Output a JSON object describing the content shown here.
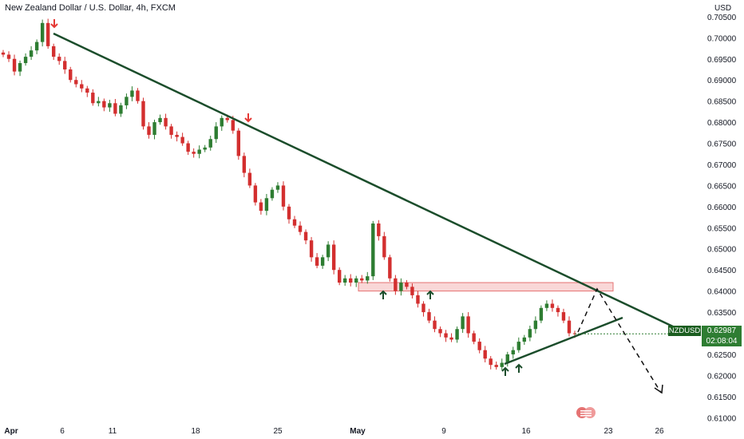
{
  "header": {
    "title": "New Zealand Dollar / U.S. Dollar, 4h, FXCM",
    "currency": "USD"
  },
  "price_label": {
    "symbol": "NZDUSD",
    "price": "0.62987",
    "countdown": "02:08:04"
  },
  "colors": {
    "up": "#26a69a",
    "down": "#ef5350",
    "up_candle": "#2e7d32",
    "down_candle": "#d32f2f",
    "trendline": "#1b4d2b",
    "zone_fill": "#f7c6c6",
    "zone_border": "#e57373",
    "arrow_down": "#e53935",
    "arrow_up": "#1b4d2b",
    "price_tag": "#2e7d32"
  },
  "chart_data": {
    "type": "candlestick",
    "yticks": [
      "0.70500",
      "0.70000",
      "0.69500",
      "0.69000",
      "0.68500",
      "0.68000",
      "0.67500",
      "0.67000",
      "0.66500",
      "0.66000",
      "0.65500",
      "0.65000",
      "0.64500",
      "0.64000",
      "0.63500",
      "0.63000",
      "0.62500",
      "0.62000",
      "0.61500",
      "0.61000"
    ],
    "ylim": [
      0.6093,
      0.708
    ],
    "xticks": [
      {
        "label": "Apr",
        "bold": true
      },
      {
        "label": "6",
        "bold": false
      },
      {
        "label": "11",
        "bold": false
      },
      {
        "label": "18",
        "bold": false
      },
      {
        "label": "25",
        "bold": false
      },
      {
        "label": "May",
        "bold": true
      },
      {
        "label": "9",
        "bold": false
      },
      {
        "label": "16",
        "bold": false
      },
      {
        "label": "23",
        "bold": false
      },
      {
        "label": "26",
        "bold": false
      }
    ],
    "close_path": [
      0.696,
      0.695,
      0.692,
      0.694,
      0.6955,
      0.697,
      0.699,
      0.7035,
      0.698,
      0.6955,
      0.6945,
      0.6925,
      0.69,
      0.689,
      0.688,
      0.687,
      0.6845,
      0.685,
      0.6835,
      0.6845,
      0.682,
      0.684,
      0.686,
      0.6875,
      0.685,
      0.679,
      0.677,
      0.68,
      0.681,
      0.679,
      0.677,
      0.6765,
      0.675,
      0.673,
      0.6725,
      0.6735,
      0.674,
      0.676,
      0.679,
      0.681,
      0.6805,
      0.678,
      0.672,
      0.668,
      0.665,
      0.661,
      0.659,
      0.662,
      0.664,
      0.665,
      0.66,
      0.657,
      0.6555,
      0.654,
      0.652,
      0.648,
      0.646,
      0.648,
      0.651,
      0.645,
      0.642,
      0.643,
      0.642,
      0.643,
      0.6425,
      0.6435,
      0.656,
      0.653,
      0.648,
      0.643,
      0.64,
      0.642,
      0.641,
      0.639,
      0.637,
      0.635,
      0.633,
      0.631,
      0.63,
      0.629,
      0.6285,
      0.631,
      0.634,
      0.63,
      0.628,
      0.626,
      0.624,
      0.6225,
      0.622,
      0.623,
      0.625,
      0.626,
      0.628,
      0.629,
      0.631,
      0.633,
      0.636,
      0.637,
      0.636,
      0.635,
      0.633,
      0.63,
      0.6298
    ],
    "horizontal_zone": {
      "from": 0.64,
      "to": 0.641
    },
    "price_marker": "0.62987"
  }
}
